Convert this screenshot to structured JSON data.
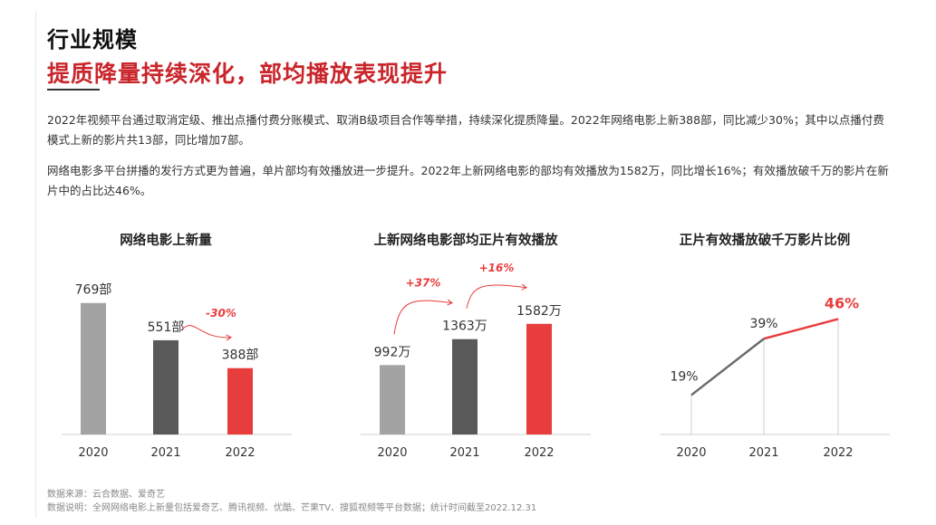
{
  "page": {
    "section_title": "行业规模",
    "headline": "提质降量持续深化，部均播放表现提升",
    "para1": "2022年视频平台通过取消定级、推出点播付费分账模式、取消B级项目合作等举措，持续深化提质降量。2022年网络电影上新388部，同比减少30%；其中以点播付费模式上新的影片共13部，同比增加7部。",
    "para2": "网络电影多平台拼播的发行方式更为普遍，单片部均有效播放进一步提升。2022年上新网络电影的部均有效播放为1582万，同比增长16%；有效播放破千万的影片在新片中的占比达46%。",
    "source": "数据来源：云合数据、爱奇艺",
    "note": "数据说明：全网网络电影上新量包括爱奇艺、腾讯视频、优酷、芒果TV、搜狐视频等平台数据；统计时间截至2022.12.31"
  },
  "colors": {
    "accent": "#e83d3d",
    "headline_red": "#c9252b",
    "light_gray": "#a3a3a3",
    "dark_gray": "#595959"
  },
  "chart_data": [
    {
      "type": "bar",
      "title": "网络电影上新量",
      "categories": [
        "2020",
        "2021",
        "2022"
      ],
      "values": [
        769,
        551,
        388
      ],
      "labels": [
        "769部",
        "551部",
        "388部"
      ],
      "annotations": [
        {
          "text": "-30%",
          "from": "2021",
          "to": "2022"
        }
      ],
      "ylim": [
        0,
        900
      ]
    },
    {
      "type": "bar",
      "title": "上新网络电影部均正片有效播放",
      "categories": [
        "2020",
        "2021",
        "2022"
      ],
      "values": [
        992,
        1363,
        1582
      ],
      "labels": [
        "992万",
        "1363万",
        "1582万"
      ],
      "annotations": [
        {
          "text": "+37%",
          "from": "2020",
          "to": "2021"
        },
        {
          "text": "+16%",
          "from": "2021",
          "to": "2022"
        }
      ],
      "ylim": [
        0,
        2200
      ]
    },
    {
      "type": "line",
      "title": "正片有效播放破千万影片比例",
      "categories": [
        "2020",
        "2021",
        "2022"
      ],
      "values": [
        19,
        39,
        46
      ],
      "labels": [
        "19%",
        "39%",
        "46%"
      ],
      "ylim": [
        5,
        50
      ]
    }
  ]
}
